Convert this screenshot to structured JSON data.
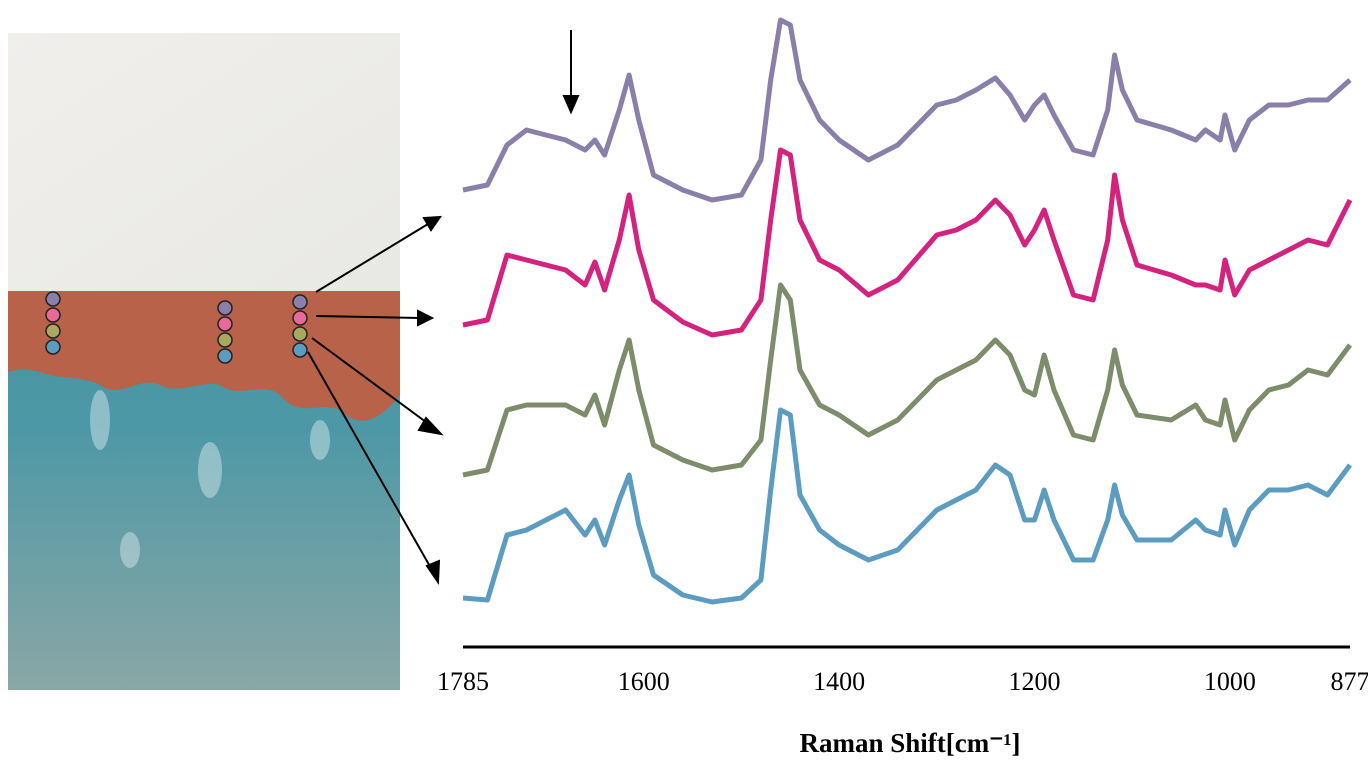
{
  "chart_data": {
    "type": "line",
    "x_label": "Raman Shift[cm⁻¹]",
    "x": [
      1785,
      1760,
      1740,
      1720,
      1700,
      1680,
      1660,
      1650,
      1640,
      1625,
      1615,
      1605,
      1590,
      1560,
      1530,
      1500,
      1480,
      1470,
      1460,
      1450,
      1440,
      1420,
      1400,
      1370,
      1340,
      1300,
      1280,
      1260,
      1240,
      1225,
      1210,
      1200,
      1190,
      1180,
      1160,
      1140,
      1125,
      1118,
      1110,
      1095,
      1060,
      1035,
      1025,
      1010,
      1005,
      995,
      980,
      960,
      940,
      920,
      900,
      877
    ],
    "series": [
      {
        "color": "#8a7fa8",
        "values": [
          450,
          455,
          495,
          510,
          505,
          500,
          490,
          500,
          485,
          530,
          565,
          520,
          465,
          450,
          440,
          445,
          480,
          560,
          620,
          615,
          560,
          520,
          500,
          480,
          495,
          535,
          540,
          550,
          562,
          545,
          520,
          535,
          545,
          525,
          490,
          485,
          530,
          585,
          550,
          520,
          510,
          500,
          510,
          500,
          525,
          490,
          520,
          535,
          535,
          540,
          540,
          560
        ]
      },
      {
        "color": "#d4237f",
        "values": [
          315,
          320,
          385,
          380,
          375,
          370,
          355,
          378,
          350,
          400,
          445,
          390,
          340,
          318,
          305,
          310,
          340,
          420,
          490,
          485,
          420,
          380,
          370,
          345,
          360,
          405,
          410,
          420,
          440,
          425,
          395,
          410,
          430,
          400,
          345,
          340,
          400,
          465,
          420,
          375,
          365,
          355,
          355,
          350,
          380,
          345,
          370,
          380,
          390,
          400,
          395,
          440
        ]
      },
      {
        "color": "#7d8c6a",
        "values": [
          165,
          170,
          230,
          235,
          235,
          235,
          225,
          245,
          215,
          270,
          300,
          250,
          195,
          180,
          170,
          175,
          200,
          280,
          355,
          340,
          270,
          235,
          225,
          205,
          220,
          260,
          270,
          280,
          300,
          285,
          250,
          245,
          285,
          250,
          205,
          200,
          250,
          290,
          255,
          225,
          220,
          235,
          220,
          215,
          240,
          200,
          230,
          250,
          255,
          270,
          265,
          295
        ]
      },
      {
        "color": "#5b9cc0",
        "values": [
          42,
          40,
          105,
          110,
          120,
          130,
          105,
          120,
          95,
          140,
          165,
          115,
          65,
          45,
          38,
          42,
          60,
          150,
          230,
          225,
          145,
          110,
          95,
          80,
          90,
          130,
          140,
          150,
          175,
          165,
          120,
          120,
          150,
          120,
          80,
          80,
          120,
          155,
          125,
          100,
          100,
          120,
          110,
          105,
          130,
          95,
          130,
          150,
          150,
          155,
          145,
          175
        ]
      }
    ],
    "xlim": [
      1785,
      877
    ],
    "xticks": [
      1785,
      1600,
      1400,
      1200,
      1000,
      877
    ],
    "ylim": [
      0,
      630
    ]
  }
}
